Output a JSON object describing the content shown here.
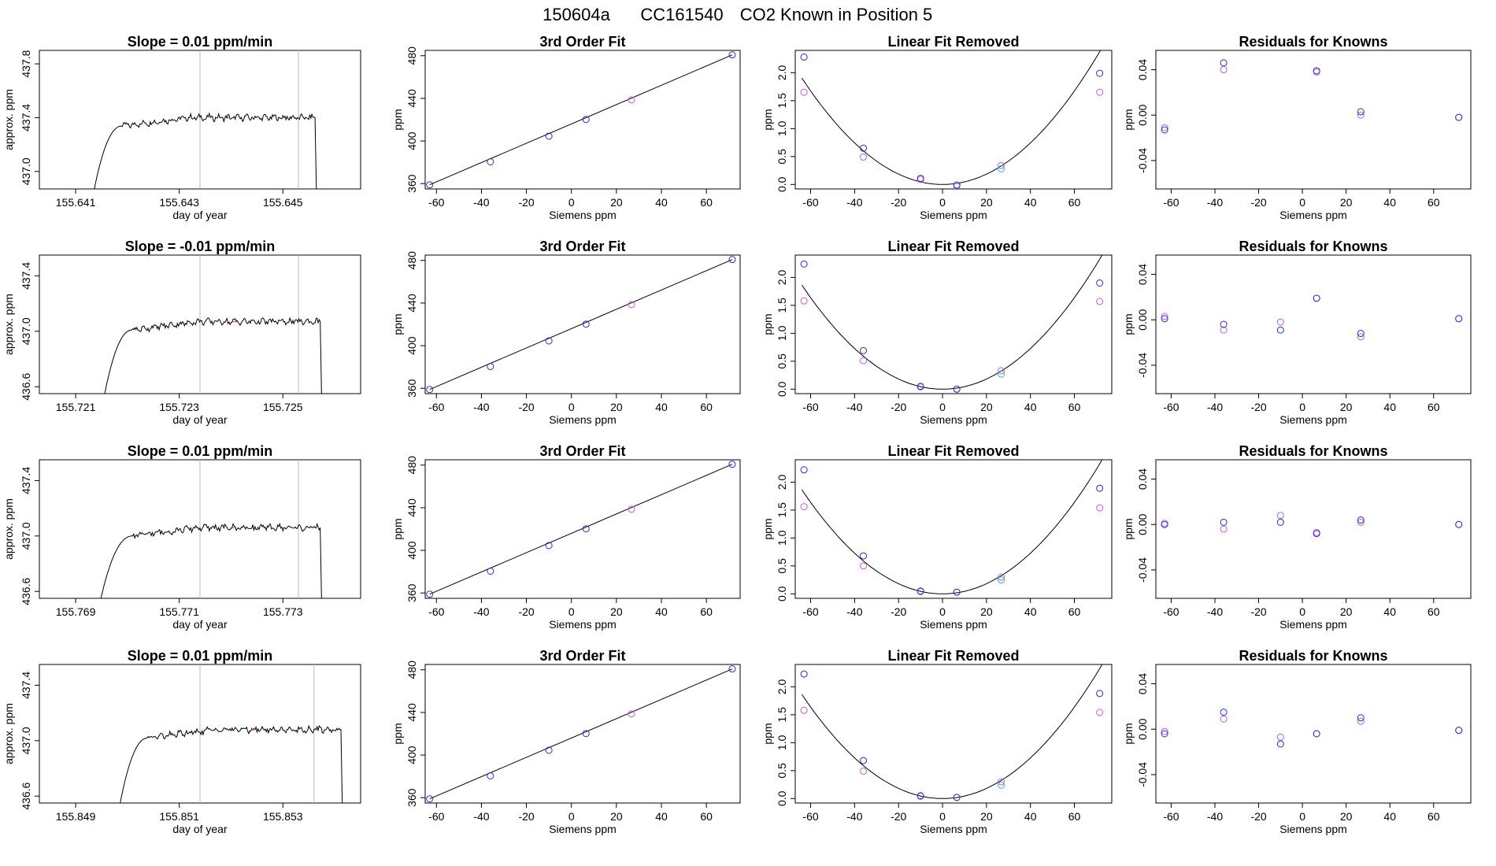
{
  "page": {
    "title_parts": [
      "150604a",
      "CC161540",
      "CO2 Known in Position  5"
    ]
  },
  "colors": {
    "line": "#000000",
    "gray_marker": "#bbbbbb",
    "blue_point": "#2b2bd6",
    "magenta_point": "#c95ad8",
    "cyan_point": "#33b8d8",
    "tick_red": "#e04040"
  },
  "chart_data": [
    {
      "type": "line",
      "row": 0,
      "panel": "timeseries",
      "title": "Slope =  0.01  ppm/min",
      "xlabel": "day of year",
      "ylabel": "approx. ppm",
      "xlim": [
        155.6403,
        155.6465
      ],
      "ylim": [
        436.87,
        437.9
      ],
      "xticks": [
        "155.641",
        "155.643",
        "155.645"
      ],
      "xtick_values": [
        155.641,
        155.643,
        155.645
      ],
      "yticks": [
        "437.0",
        "437.4",
        "437.8"
      ],
      "ytick_values": [
        437.0,
        437.4,
        437.8
      ],
      "vlines": [
        155.6434,
        155.6453
      ],
      "plateau": 437.4,
      "t_start": 155.6412,
      "t_rise": 155.6419,
      "t_end": 155.6456
    },
    {
      "type": "scatter",
      "row": 0,
      "panel": "fit3",
      "title": "3rd Order Fit",
      "xlabel": "Siemens ppm",
      "ylabel": "ppm",
      "xlim": [
        -65,
        75
      ],
      "ylim": [
        355,
        485
      ],
      "xticks": [
        -60,
        -40,
        -20,
        0,
        20,
        40,
        60
      ],
      "yticks": [
        360,
        400,
        440,
        480
      ],
      "points_x": [
        -63,
        -36,
        -10,
        6.5,
        26.7,
        71.5
      ],
      "points_y": [
        358.9,
        380.5,
        404.5,
        420.2,
        438.6,
        480.8
      ]
    },
    {
      "type": "scatter",
      "row": 0,
      "panel": "linear_removed",
      "title": "Linear Fit Removed",
      "xlabel": "Siemens ppm",
      "ylabel": "ppm",
      "xlim": [
        -67,
        77
      ],
      "ylim": [
        -0.08,
        2.4
      ],
      "xticks": [
        -60,
        -40,
        -20,
        0,
        20,
        40,
        60
      ],
      "yticks": [
        "0.0",
        "0.5",
        "1.0",
        "1.5",
        "2.0"
      ],
      "ytick_values": [
        0,
        0.5,
        1.0,
        1.5,
        2.0
      ],
      "curve_a": 0.000465,
      "curve_vertex": 0.0,
      "blue_x": [
        -63,
        -36,
        -10,
        6.5,
        71.5
      ],
      "blue_y": [
        2.28,
        0.65,
        0.11,
        -0.01,
        1.99
      ],
      "magenta_x": [
        -63,
        -36,
        -10,
        6.5,
        26.7,
        71.5
      ],
      "magenta_y": [
        1.65,
        0.49,
        0.09,
        -0.03,
        0.34,
        1.65
      ],
      "cyan_x": [
        26.7
      ],
      "cyan_y": [
        0.28
      ]
    },
    {
      "type": "scatter",
      "row": 0,
      "panel": "residuals",
      "title": "Residuals for Knowns",
      "xlabel": "Siemens ppm",
      "ylabel": "ppm",
      "xlim": [
        -67,
        77
      ],
      "ylim": [
        -0.065,
        0.057
      ],
      "xticks": [
        -60,
        -40,
        -20,
        0,
        20,
        40,
        60
      ],
      "yticks": [
        "-0.04",
        "0.00",
        "0.04"
      ],
      "ytick_values": [
        -0.04,
        0.0,
        0.04
      ],
      "blue_x": [
        -63,
        -36,
        6.5,
        26.7,
        71.5
      ],
      "blue_y": [
        -0.013,
        0.046,
        0.039,
        0.003,
        -0.002
      ],
      "magenta_x": [
        -63,
        -36,
        6.5,
        26.7,
        71.5
      ],
      "magenta_y": [
        -0.011,
        0.04,
        0.038,
        0.0,
        -0.002
      ]
    },
    {
      "type": "line",
      "row": 1,
      "panel": "timeseries",
      "title": "Slope =  -0.01  ppm/min",
      "xlabel": "day of year",
      "ylabel": "approx. ppm",
      "xlim": [
        155.7203,
        155.7265
      ],
      "ylim": [
        436.55,
        437.55
      ],
      "xticks": [
        "155.721",
        "155.723",
        "155.725"
      ],
      "xtick_values": [
        155.721,
        155.723,
        155.725
      ],
      "yticks": [
        "436.6",
        "437.0",
        "437.4"
      ],
      "ytick_values": [
        436.6,
        437.0,
        437.4
      ],
      "vlines": [
        155.7234,
        155.7253
      ],
      "plateau": 437.07,
      "t_start": 155.7214,
      "t_rise": 155.7221,
      "t_end": 155.7257
    },
    {
      "type": "scatter",
      "row": 1,
      "panel": "fit3",
      "title": "3rd Order Fit",
      "xlabel": "Siemens ppm",
      "ylabel": "ppm",
      "xlim": [
        -65,
        75
      ],
      "ylim": [
        355,
        485
      ],
      "xticks": [
        -60,
        -40,
        -20,
        0,
        20,
        40,
        60
      ],
      "yticks": [
        360,
        400,
        440,
        480
      ],
      "points_x": [
        -63,
        -36,
        -10,
        6.5,
        26.7,
        71.5
      ],
      "points_y": [
        358.9,
        380.5,
        404.5,
        420.2,
        438.6,
        480.8
      ]
    },
    {
      "type": "scatter",
      "row": 1,
      "panel": "linear_removed",
      "title": "Linear Fit Removed",
      "xlabel": "Siemens ppm",
      "ylabel": "ppm",
      "xlim": [
        -67,
        77
      ],
      "ylim": [
        -0.08,
        2.4
      ],
      "xticks": [
        -60,
        -40,
        -20,
        0,
        20,
        40,
        60
      ],
      "yticks": [
        "0.0",
        "0.5",
        "1.0",
        "1.5",
        "2.0"
      ],
      "ytick_values": [
        0,
        0.5,
        1.0,
        1.5,
        2.0
      ],
      "curve_a": 0.000455,
      "curve_vertex": 0.0,
      "blue_x": [
        -63,
        -36,
        -10,
        6.5,
        71.5
      ],
      "blue_y": [
        2.24,
        0.69,
        0.05,
        0.0,
        1.9
      ],
      "magenta_x": [
        -63,
        -36,
        -10,
        6.5,
        26.7,
        71.5
      ],
      "magenta_y": [
        1.58,
        0.51,
        0.04,
        0.0,
        0.33,
        1.57
      ],
      "cyan_x": [
        26.7
      ],
      "cyan_y": [
        0.27
      ]
    },
    {
      "type": "scatter",
      "row": 1,
      "panel": "residuals",
      "title": "Residuals for Knowns",
      "xlabel": "Siemens ppm",
      "ylabel": "ppm",
      "xlim": [
        -67,
        77
      ],
      "ylim": [
        -0.065,
        0.057
      ],
      "xticks": [
        -60,
        -40,
        -20,
        0,
        20,
        40,
        60
      ],
      "yticks": [
        "-0.04",
        "0.00",
        "0.04"
      ],
      "ytick_values": [
        -0.04,
        0.0,
        0.04
      ],
      "blue_x": [
        -63,
        -36,
        -10,
        6.5,
        26.7,
        71.5
      ],
      "blue_y": [
        0.001,
        -0.004,
        -0.009,
        0.019,
        -0.012,
        0.001
      ],
      "magenta_x": [
        -63,
        -36,
        -10,
        6.5,
        26.7,
        71.5
      ],
      "magenta_y": [
        0.003,
        -0.009,
        -0.002,
        0.019,
        -0.015,
        0.001
      ]
    },
    {
      "type": "line",
      "row": 2,
      "panel": "timeseries",
      "title": "Slope =  0.01  ppm/min",
      "xlabel": "day of year",
      "ylabel": "approx. ppm",
      "xlim": [
        155.7683,
        155.7745
      ],
      "ylim": [
        436.55,
        437.55
      ],
      "xticks": [
        "155.769",
        "155.771",
        "155.773"
      ],
      "xtick_values": [
        155.769,
        155.771,
        155.773
      ],
      "yticks": [
        "436.6",
        "437.0",
        "437.4"
      ],
      "ytick_values": [
        436.6,
        437.0,
        437.4
      ],
      "vlines": [
        155.7714,
        155.7733
      ],
      "plateau": 437.06,
      "t_start": 155.7693,
      "t_rise": 155.7701,
      "t_end": 155.7737
    },
    {
      "type": "scatter",
      "row": 2,
      "panel": "fit3",
      "title": "3rd Order Fit",
      "xlabel": "Siemens ppm",
      "ylabel": "ppm",
      "xlim": [
        -65,
        75
      ],
      "ylim": [
        355,
        485
      ],
      "xticks": [
        -60,
        -40,
        -20,
        0,
        20,
        40,
        60
      ],
      "yticks": [
        360,
        400,
        440,
        480
      ],
      "points_x": [
        -63,
        -36,
        -10,
        6.5,
        26.7,
        71.5
      ],
      "points_y": [
        358.9,
        380.5,
        404.5,
        420.2,
        438.6,
        480.8
      ]
    },
    {
      "type": "scatter",
      "row": 2,
      "panel": "linear_removed",
      "title": "Linear Fit Removed",
      "xlabel": "Siemens ppm",
      "ylabel": "ppm",
      "xlim": [
        -67,
        77
      ],
      "ylim": [
        -0.08,
        2.4
      ],
      "xticks": [
        -60,
        -40,
        -20,
        0,
        20,
        40,
        60
      ],
      "yticks": [
        "0.0",
        "0.5",
        "1.0",
        "1.5",
        "2.0"
      ],
      "ytick_values": [
        0,
        0.5,
        1.0,
        1.5,
        2.0
      ],
      "curve_a": 0.000455,
      "curve_vertex": 0.0,
      "blue_x": [
        -63,
        -36,
        -10,
        6.5,
        71.5
      ],
      "blue_y": [
        2.22,
        0.68,
        0.05,
        0.03,
        1.89
      ],
      "magenta_x": [
        -63,
        -36,
        -10,
        6.5,
        26.7,
        71.5
      ],
      "magenta_y": [
        1.56,
        0.5,
        0.04,
        0.03,
        0.3,
        1.54
      ],
      "cyan_x": [
        26.7
      ],
      "cyan_y": [
        0.25
      ]
    },
    {
      "type": "scatter",
      "row": 2,
      "panel": "residuals",
      "title": "Residuals for Knowns",
      "xlabel": "Siemens ppm",
      "ylabel": "ppm",
      "xlim": [
        -67,
        77
      ],
      "ylim": [
        -0.065,
        0.057
      ],
      "xticks": [
        -60,
        -40,
        -20,
        0,
        20,
        40,
        60
      ],
      "yticks": [
        "-0.04",
        "0.00",
        "0.04"
      ],
      "ytick_values": [
        -0.04,
        0.0,
        0.04
      ],
      "blue_x": [
        -63,
        -36,
        -10,
        6.5,
        26.7,
        71.5
      ],
      "blue_y": [
        0.0,
        0.002,
        0.002,
        -0.008,
        0.004,
        0.0
      ],
      "magenta_x": [
        -63,
        -36,
        -10,
        6.5,
        26.7,
        71.5
      ],
      "magenta_y": [
        0.001,
        -0.004,
        0.008,
        -0.007,
        0.002,
        0.0
      ]
    },
    {
      "type": "line",
      "row": 3,
      "panel": "timeseries",
      "title": "Slope =  0.01  ppm/min",
      "xlabel": "day of year",
      "ylabel": "approx. ppm",
      "xlim": [
        155.8483,
        155.8545
      ],
      "ylim": [
        436.55,
        437.55
      ],
      "xticks": [
        "155.849",
        "155.851",
        "155.853"
      ],
      "xtick_values": [
        155.849,
        155.851,
        155.853
      ],
      "yticks": [
        "436.6",
        "437.0",
        "437.4"
      ],
      "ytick_values": [
        436.6,
        437.0,
        437.4
      ],
      "vlines": [
        155.8514,
        155.8536
      ],
      "plateau": 437.08,
      "t_start": 155.8497,
      "t_rise": 155.8504,
      "t_end": 155.8541
    },
    {
      "type": "scatter",
      "row": 3,
      "panel": "fit3",
      "title": "3rd Order Fit",
      "xlabel": "Siemens ppm",
      "ylabel": "ppm",
      "xlim": [
        -65,
        75
      ],
      "ylim": [
        355,
        485
      ],
      "xticks": [
        -60,
        -40,
        -20,
        0,
        20,
        40,
        60
      ],
      "yticks": [
        360,
        400,
        440,
        480
      ],
      "points_x": [
        -63,
        -36,
        -10,
        6.5,
        26.7,
        71.5
      ],
      "points_y": [
        358.9,
        380.5,
        404.5,
        420.2,
        438.6,
        480.8
      ]
    },
    {
      "type": "scatter",
      "row": 3,
      "panel": "linear_removed",
      "title": "Linear Fit Removed",
      "xlabel": "Siemens ppm",
      "ylabel": "ppm",
      "xlim": [
        -67,
        77
      ],
      "ylim": [
        -0.08,
        2.4
      ],
      "xticks": [
        -60,
        -40,
        -20,
        0,
        20,
        40,
        60
      ],
      "yticks": [
        "0.0",
        "0.5",
        "1.0",
        "1.5",
        "2.0"
      ],
      "ytick_values": [
        0,
        0.5,
        1.0,
        1.5,
        2.0
      ],
      "curve_a": 0.000455,
      "curve_vertex": 0.0,
      "blue_x": [
        -63,
        -36,
        -10,
        6.5,
        71.5
      ],
      "blue_y": [
        2.23,
        0.68,
        0.05,
        0.02,
        1.88
      ],
      "magenta_x": [
        -63,
        -36,
        -10,
        6.5,
        26.7,
        71.5
      ],
      "magenta_y": [
        1.58,
        0.49,
        0.04,
        0.02,
        0.3,
        1.54
      ],
      "cyan_x": [
        26.7
      ],
      "cyan_y": [
        0.24
      ]
    },
    {
      "type": "scatter",
      "row": 3,
      "panel": "residuals",
      "title": "Residuals for Knowns",
      "xlabel": "Siemens ppm",
      "ylabel": "ppm",
      "xlim": [
        -67,
        77
      ],
      "ylim": [
        -0.065,
        0.057
      ],
      "xticks": [
        -60,
        -40,
        -20,
        0,
        20,
        40,
        60
      ],
      "yticks": [
        "-0.04",
        "0.00",
        "0.04"
      ],
      "ytick_values": [
        -0.04,
        0.0,
        0.04
      ],
      "blue_x": [
        -63,
        -36,
        -10,
        6.5,
        26.7,
        71.5
      ],
      "blue_y": [
        -0.004,
        0.015,
        -0.013,
        -0.004,
        0.01,
        -0.001
      ],
      "magenta_x": [
        -63,
        -36,
        -10,
        6.5,
        26.7,
        71.5
      ],
      "magenta_y": [
        -0.002,
        0.009,
        -0.007,
        -0.004,
        0.007,
        -0.001
      ]
    }
  ]
}
